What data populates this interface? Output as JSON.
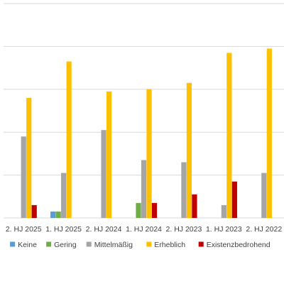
{
  "chart_data": {
    "type": "bar",
    "categories": [
      "2. HJ 2025",
      "1. HJ 2025",
      "2. HJ 2024",
      "1. HJ 2024",
      "2. HJ 2023",
      "1. HJ 2023",
      "2. HJ 2022"
    ],
    "series": [
      {
        "name": "Keine",
        "color": "#5B9BD5",
        "values": [
          0,
          3,
          0,
          0,
          0,
          0,
          0
        ]
      },
      {
        "name": "Gering",
        "color": "#70AD47",
        "values": [
          0,
          3,
          0,
          7,
          0,
          0,
          0
        ]
      },
      {
        "name": "Mittelmäßig",
        "color": "#A5A5A5",
        "values": [
          38,
          21,
          41,
          27,
          26,
          6,
          21
        ]
      },
      {
        "name": "Erheblich",
        "color": "#FFC000",
        "values": [
          56,
          73,
          59,
          60,
          63,
          77,
          79
        ]
      },
      {
        "name": "Existenzbedrohend",
        "color": "#C00000",
        "values": [
          6,
          0,
          0,
          7,
          11,
          17,
          0
        ]
      }
    ],
    "ylim": [
      0,
      100
    ],
    "grid": true,
    "legend_position": "bottom",
    "title": "",
    "xlabel": "",
    "ylabel": ""
  }
}
